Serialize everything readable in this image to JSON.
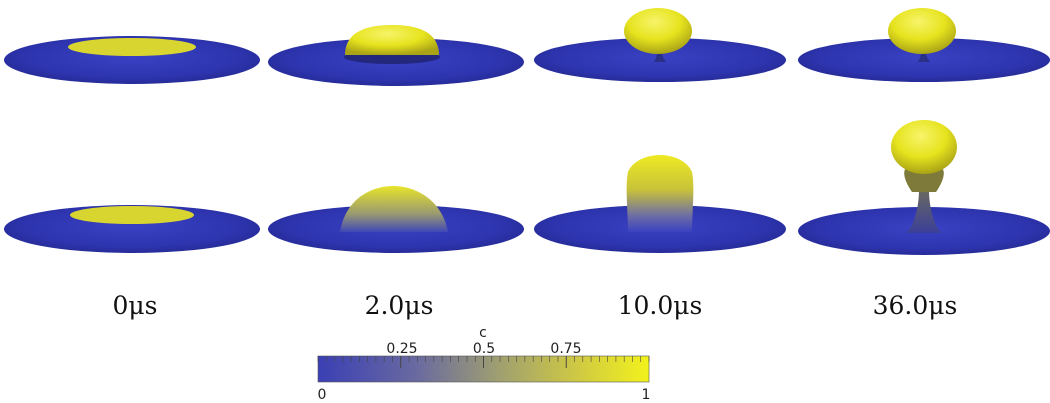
{
  "time_labels": [
    "0μs",
    "2.0μs",
    "10.0μs",
    "36.0μs"
  ],
  "colorbar": {
    "title": "c",
    "min_label": "0",
    "max_label": "1",
    "tick_labels": [
      "0.25",
      "0.5",
      "0.75"
    ],
    "tick_values": [
      0.25,
      0.5,
      0.75
    ],
    "colors": [
      "#3a3fb4",
      "#7a7a9a",
      "#c8c24a",
      "#f2f21c"
    ]
  },
  "colors": {
    "disk": "#2f36b0",
    "drop": "#e8e52a"
  }
}
